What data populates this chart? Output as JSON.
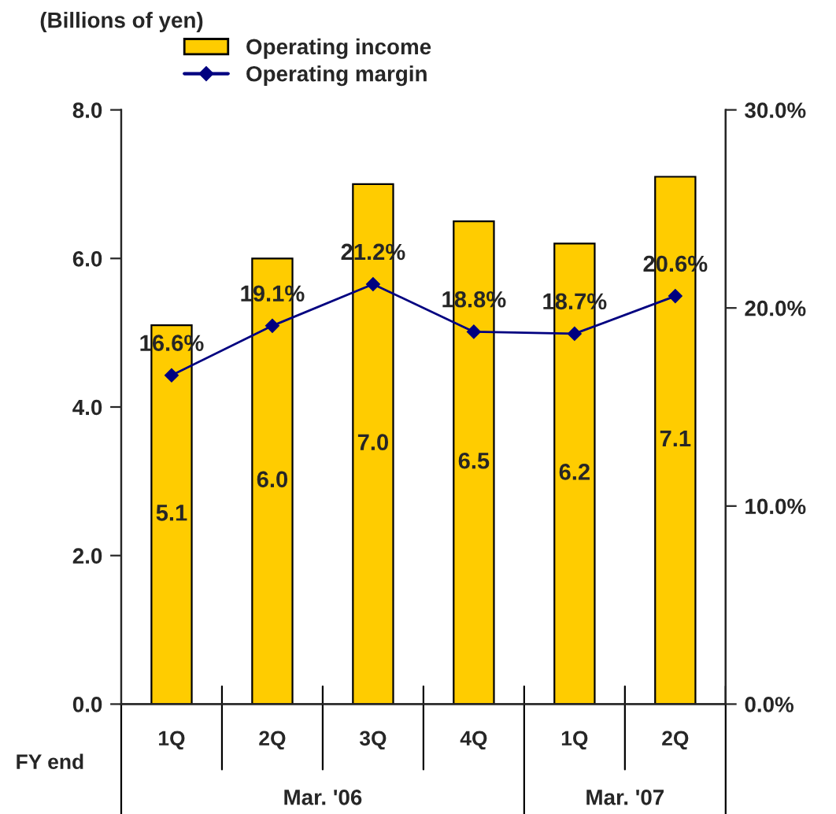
{
  "chart_data": {
    "type": "bar",
    "ylabel": "(Billions of yen)",
    "categories": [
      "1Q",
      "2Q",
      "3Q",
      "4Q",
      "1Q",
      "2Q"
    ],
    "series": [
      {
        "name": "Operating income",
        "color": "#ffcc00",
        "values": [
          5.1,
          6.0,
          7.0,
          6.5,
          6.2,
          7.1
        ],
        "value_labels": [
          "5.1",
          "6.0",
          "7.0",
          "6.5",
          "6.2",
          "7.1"
        ]
      },
      {
        "name": "Operating margin",
        "type": "line",
        "axis": "y2",
        "color": "#000080",
        "marker": "diamond",
        "values": [
          16.6,
          19.1,
          21.2,
          18.8,
          18.7,
          20.6
        ],
        "value_labels": [
          "16.6%",
          "19.1%",
          "21.2%",
          "18.8%",
          "18.7%",
          "20.6%"
        ]
      }
    ],
    "ylim": [
      0,
      8
    ],
    "yticks": [
      {
        "value": 0,
        "label": "0.0"
      },
      {
        "value": 2,
        "label": "2.0"
      },
      {
        "value": 4,
        "label": "4.0"
      },
      {
        "value": 6,
        "label": "6.0"
      },
      {
        "value": 8,
        "label": "8.0"
      }
    ],
    "y2lim": [
      0,
      30
    ],
    "y2ticks": [
      {
        "value": 0,
        "label": "0.0%"
      },
      {
        "value": 10,
        "label": "10.0%"
      },
      {
        "value": 20,
        "label": "20.0%"
      },
      {
        "value": 30,
        "label": "30.0%"
      }
    ],
    "legend": "top left",
    "grid": false,
    "annotations": [
      "FY end",
      "Mar. '06",
      "Mar. '07"
    ]
  }
}
